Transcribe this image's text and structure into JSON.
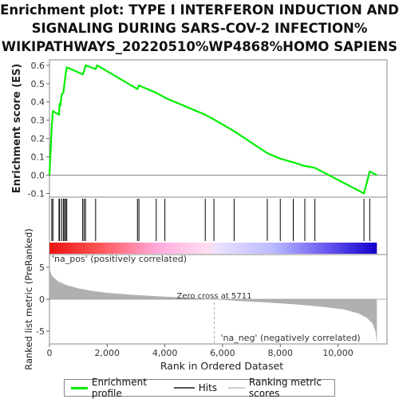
{
  "title_lines": [
    "Enrichment plot: TYPE I INTERFERON INDUCTION AND",
    "SIGNALING DURING SARS-COV-2 INFECTION%",
    "WIKIPATHWAYS_20220510%WP4868%HOMO SAPIENS"
  ],
  "colors": {
    "enrichment_line": "#00ee00",
    "hits": "#000000",
    "metric_fill": "#b0b0b0",
    "pos_label": "#dd2222",
    "neg_label": "#3333cc",
    "zero_line": "#888888"
  },
  "chart_data": [
    {
      "type": "line",
      "name": "enrichment-profile",
      "ylabel": "Enrichment score (ES)",
      "xlim": [
        0,
        11700
      ],
      "ylim": [
        -0.12,
        0.63
      ],
      "yticks": [
        -0.1,
        0.0,
        0.1,
        0.2,
        0.3,
        0.4,
        0.5,
        0.6
      ],
      "ytick_labels": [
        "-0.1",
        "0.0",
        "0.1",
        "0.2",
        "0.3",
        "0.4",
        "0.5",
        "0.6"
      ],
      "grid": false,
      "x": [
        0,
        80,
        120,
        330,
        350,
        380,
        420,
        480,
        520,
        560,
        600,
        1150,
        1200,
        1250,
        1600,
        1650,
        3050,
        3100,
        3700,
        4050,
        5400,
        5750,
        6400,
        7550,
        8000,
        8450,
        8850,
        9200,
        10900,
        11000,
        11100,
        11350
      ],
      "y": [
        0.0,
        0.27,
        0.35,
        0.33,
        0.39,
        0.38,
        0.44,
        0.45,
        0.5,
        0.55,
        0.59,
        0.55,
        0.57,
        0.6,
        0.58,
        0.6,
        0.47,
        0.49,
        0.45,
        0.42,
        0.33,
        0.3,
        0.24,
        0.12,
        0.09,
        0.07,
        0.05,
        0.04,
        -0.1,
        -0.04,
        0.02,
        0.0
      ]
    },
    {
      "type": "hits",
      "name": "hits",
      "x": [
        80,
        120,
        330,
        350,
        420,
        480,
        520,
        560,
        600,
        1150,
        1200,
        1250,
        1600,
        3050,
        3100,
        3700,
        4000,
        5400,
        5700,
        6400,
        7550,
        8000,
        8450,
        8850,
        9200,
        10900,
        11100
      ]
    },
    {
      "type": "area",
      "name": "ranking-metric-scores",
      "xlabel": "Rank in Ordered Dataset",
      "ylabel": "Ranked list metric (PreRanked)",
      "xlim": [
        0,
        11700
      ],
      "ylim": [
        -7,
        7
      ],
      "yticks": [
        -5,
        0,
        5
      ],
      "ytick_labels": [
        "-5",
        "0",
        "5"
      ],
      "xticks": [
        0,
        2000,
        4000,
        6000,
        8000,
        10000
      ],
      "xtick_labels": [
        "0",
        "2,000",
        "4,000",
        "6,000",
        "8,000",
        "10,000"
      ],
      "x": [
        0,
        30,
        100,
        300,
        600,
        1000,
        1500,
        2000,
        3000,
        4000,
        5000,
        5711,
        6500,
        7500,
        8500,
        9500,
        10200,
        10700,
        11000,
        11200,
        11300,
        11350
      ],
      "y": [
        5.6,
        4.3,
        3.6,
        2.8,
        2.2,
        1.7,
        1.3,
        1.0,
        0.65,
        0.4,
        0.2,
        0.0,
        -0.25,
        -0.5,
        -0.8,
        -1.2,
        -1.6,
        -2.2,
        -2.9,
        -3.8,
        -5.0,
        -7.0
      ],
      "zero_cross_label": "Zero cross at 5711",
      "zero_cross_x": 5711,
      "pos_label": "'na_pos' (positively correlated)",
      "neg_label": "'na_neg' (negatively correlated)"
    }
  ],
  "legend": {
    "items": [
      {
        "label": "Enrichment profile",
        "color": "#00ee00"
      },
      {
        "label": "Hits",
        "color": "#555555"
      },
      {
        "label": "Ranking metric scores",
        "color": "#cccccc"
      }
    ]
  }
}
